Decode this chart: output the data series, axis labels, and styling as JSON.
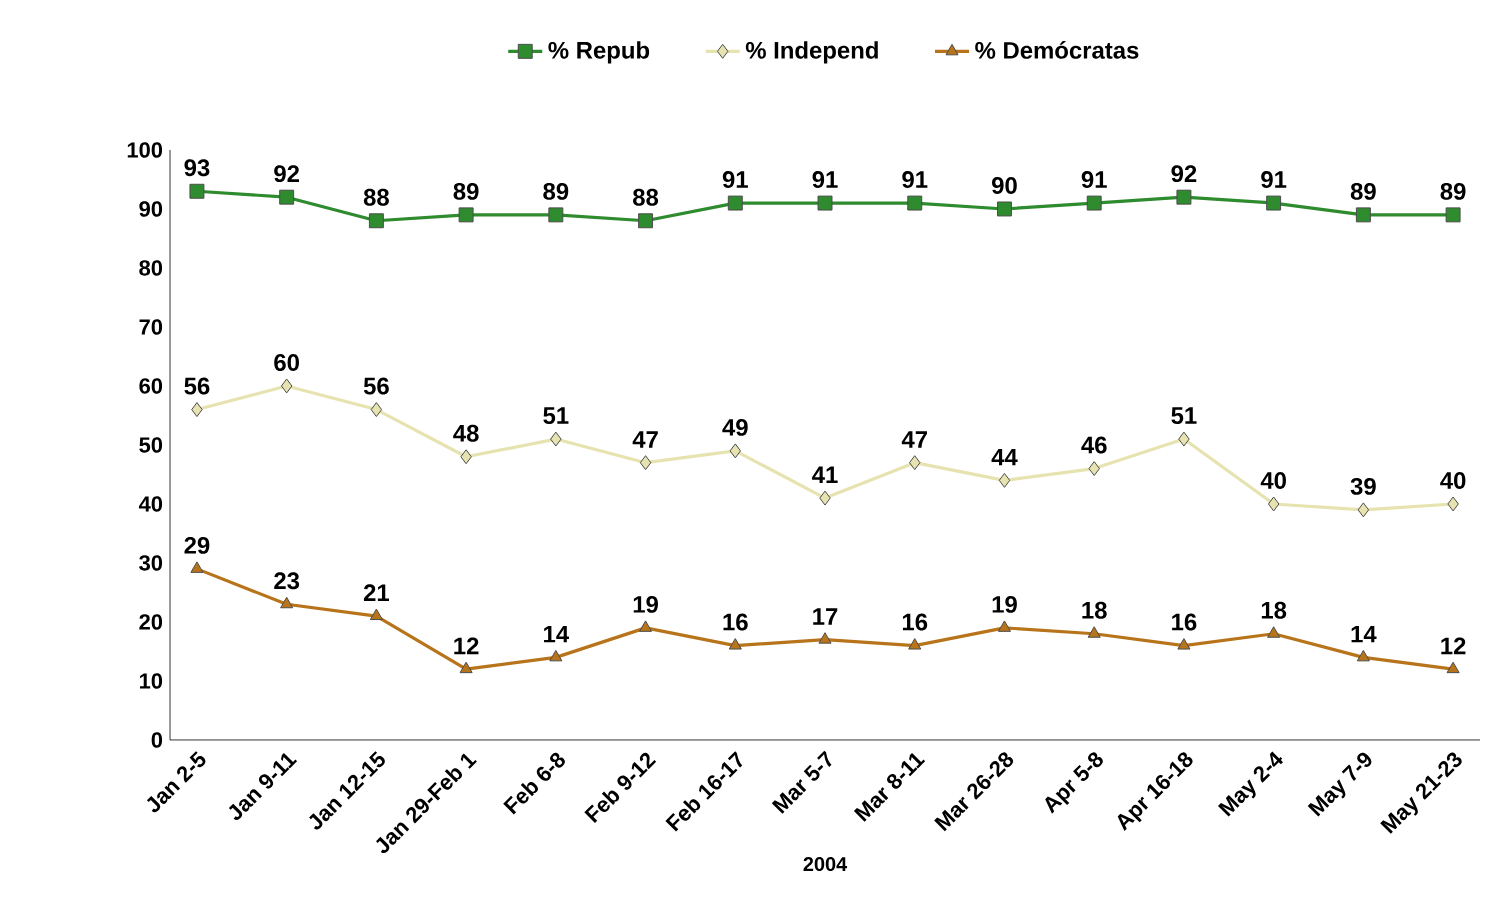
{
  "chart_data": {
    "type": "line",
    "xlabel": "2004",
    "categories": [
      "Jan 2-5",
      "Jan 9-11",
      "Jan 12-15",
      "Jan 29-Feb 1",
      "Feb 6-8",
      "Feb 9-12",
      "Feb 16-17",
      "Mar 5-7",
      "Mar 8-11",
      "Mar 26-28",
      "Apr 5-8",
      "Apr 16-18",
      "May 2-4",
      "May 7-9",
      "May 21-23"
    ],
    "series": [
      {
        "name": "% Repub",
        "color": "#2e8b2e",
        "marker": "square",
        "values": [
          93,
          92,
          88,
          89,
          89,
          88,
          91,
          91,
          91,
          90,
          91,
          92,
          91,
          89,
          89
        ]
      },
      {
        "name": "%  Independ",
        "color": "#e6e3b0",
        "marker": "diamond",
        "values": [
          56,
          60,
          56,
          48,
          51,
          47,
          49,
          41,
          47,
          44,
          46,
          51,
          40,
          39,
          40
        ]
      },
      {
        "name": "% Demócratas",
        "color": "#b8741a",
        "marker": "triangle",
        "values": [
          29,
          23,
          21,
          12,
          14,
          19,
          16,
          17,
          16,
          19,
          18,
          16,
          18,
          14,
          12
        ]
      }
    ],
    "ylim": [
      0,
      100
    ],
    "yticks": [
      0,
      10,
      20,
      30,
      40,
      50,
      60,
      70,
      80,
      90,
      100
    ],
    "data_labels": true,
    "legend": "top",
    "grid": false
  }
}
